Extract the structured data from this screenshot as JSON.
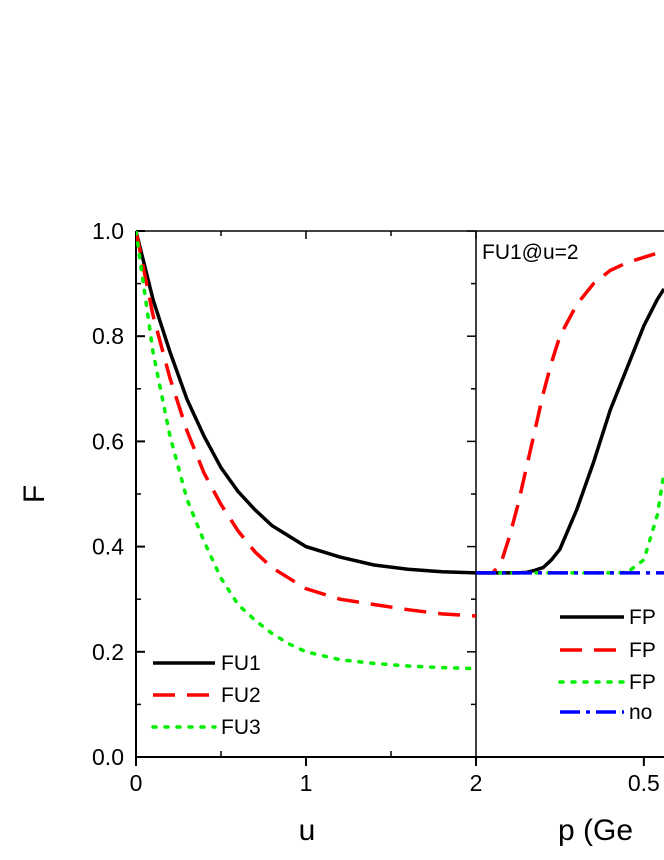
{
  "chart_data": [
    {
      "type": "line",
      "xlabel": "u",
      "ylabel": "F",
      "xlim": [
        0,
        2
      ],
      "ylim": [
        0.0,
        1.0
      ],
      "x_ticks": [
        "0",
        "1",
        "2"
      ],
      "y_ticks": [
        "0.0",
        "0.2",
        "0.4",
        "0.6",
        "0.8",
        "1.0"
      ],
      "legend_position": "bottom-left",
      "x": [
        0,
        0.1,
        0.2,
        0.3,
        0.4,
        0.5,
        0.6,
        0.7,
        0.8,
        0.9,
        1.0,
        1.2,
        1.4,
        1.6,
        1.8,
        2.0
      ],
      "series": [
        {
          "name": "FU1",
          "color": "#000000",
          "style": "solid",
          "values": [
            1.0,
            0.87,
            0.77,
            0.68,
            0.61,
            0.55,
            0.505,
            0.47,
            0.44,
            0.42,
            0.4,
            0.38,
            0.365,
            0.357,
            0.352,
            0.35
          ]
        },
        {
          "name": "FU2",
          "color": "#ff0000",
          "style": "dashed",
          "values": [
            1.0,
            0.84,
            0.72,
            0.62,
            0.54,
            0.48,
            0.43,
            0.39,
            0.36,
            0.34,
            0.32,
            0.3,
            0.29,
            0.28,
            0.272,
            0.268
          ]
        },
        {
          "name": "FU3",
          "color": "#00ee00",
          "style": "dotted",
          "values": [
            1.0,
            0.77,
            0.61,
            0.49,
            0.41,
            0.34,
            0.29,
            0.26,
            0.235,
            0.215,
            0.2,
            0.185,
            0.178,
            0.173,
            0.17,
            0.168
          ]
        }
      ]
    },
    {
      "type": "line",
      "xlabel": "p (Ge",
      "annotation": "FU1@u=2",
      "xlim": [
        0,
        0.56
      ],
      "ylim": [
        0.0,
        1.0
      ],
      "x_ticks": [
        "0.5"
      ],
      "legend_position": "bottom-right",
      "x": [
        0,
        0.025,
        0.05,
        0.075,
        0.1,
        0.125,
        0.15,
        0.175,
        0.2,
        0.225,
        0.25,
        0.3,
        0.35,
        0.4,
        0.45,
        0.5,
        0.54,
        0.56
      ],
      "series": [
        {
          "name": "FP",
          "color": "#000000",
          "style": "solid",
          "values": [
            0.35,
            0.35,
            0.35,
            0.35,
            0.35,
            0.35,
            0.351,
            0.355,
            0.36,
            0.375,
            0.395,
            0.47,
            0.56,
            0.66,
            0.74,
            0.82,
            0.87,
            0.89
          ]
        },
        {
          "name": "FP",
          "color": "#ff0000",
          "style": "dashed",
          "values": [
            0.35,
            0.35,
            0.35,
            0.37,
            0.42,
            0.48,
            0.55,
            0.62,
            0.69,
            0.75,
            0.8,
            0.86,
            0.9,
            0.925,
            0.94,
            0.95,
            0.958,
            0.962
          ]
        },
        {
          "name": "FP",
          "color": "#00ee00",
          "style": "dotted",
          "values": [
            0.35,
            0.35,
            0.35,
            0.35,
            0.35,
            0.35,
            0.35,
            0.35,
            0.35,
            0.35,
            0.35,
            0.35,
            0.35,
            0.35,
            0.351,
            0.375,
            0.46,
            0.54
          ]
        },
        {
          "name": "no",
          "color": "#0000ff",
          "style": "dashdot",
          "values": [
            0.35,
            0.35,
            0.35,
            0.35,
            0.35,
            0.35,
            0.35,
            0.35,
            0.35,
            0.35,
            0.35,
            0.35,
            0.35,
            0.35,
            0.35,
            0.35,
            0.35,
            0.35
          ]
        }
      ]
    }
  ]
}
